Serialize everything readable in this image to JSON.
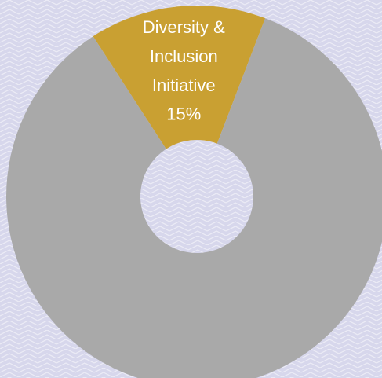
{
  "chart_data": {
    "type": "donut",
    "categories": [
      "Diversity & Inclusion Initiative",
      null
    ],
    "values": [
      15,
      85
    ],
    "value_labels": [
      "15%",
      null
    ],
    "colors": [
      "#c9a032",
      "#a9a9a9"
    ]
  }
}
